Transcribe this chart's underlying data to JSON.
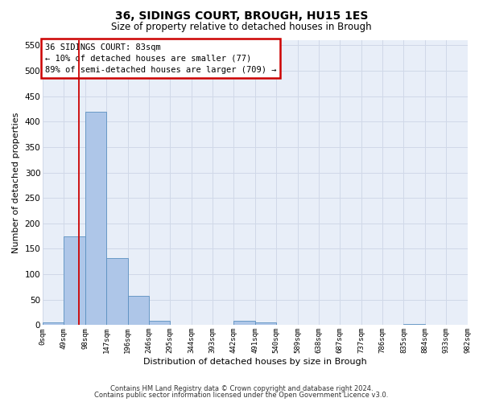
{
  "title1": "36, SIDINGS COURT, BROUGH, HU15 1ES",
  "title2": "Size of property relative to detached houses in Brough",
  "xlabel": "Distribution of detached houses by size in Brough",
  "ylabel": "Number of detached properties",
  "footnote1": "Contains HM Land Registry data © Crown copyright and database right 2024.",
  "footnote2": "Contains public sector information licensed under the Open Government Licence v3.0.",
  "annotation_line1": "36 SIDINGS COURT: 83sqm",
  "annotation_line2": "← 10% of detached houses are smaller (77)",
  "annotation_line3": "89% of semi-detached houses are larger (709) →",
  "property_size": 83,
  "bar_edges": [
    0,
    49,
    98,
    147,
    196,
    245,
    294,
    343,
    392,
    441,
    490,
    539,
    588,
    637,
    686,
    735,
    784,
    833,
    882,
    931,
    980
  ],
  "bar_labels": [
    "0sqm",
    "49sqm",
    "98sqm",
    "147sqm",
    "196sqm",
    "246sqm",
    "295sqm",
    "344sqm",
    "393sqm",
    "442sqm",
    "491sqm",
    "540sqm",
    "589sqm",
    "638sqm",
    "687sqm",
    "737sqm",
    "786sqm",
    "835sqm",
    "884sqm",
    "933sqm",
    "982sqm"
  ],
  "bar_values": [
    5,
    175,
    420,
    132,
    58,
    8,
    0,
    0,
    0,
    8,
    5,
    0,
    0,
    0,
    0,
    0,
    0,
    3,
    0,
    0,
    0
  ],
  "bar_color": "#aec6e8",
  "bar_edge_color": "#5a8fc0",
  "vline_color": "#cc0000",
  "vline_x": 83,
  "box_color": "#cc0000",
  "ylim": [
    0,
    560
  ],
  "yticks": [
    0,
    50,
    100,
    150,
    200,
    250,
    300,
    350,
    400,
    450,
    500,
    550
  ],
  "grid_color": "#d0d8e8",
  "bg_color": "#e8eef8"
}
